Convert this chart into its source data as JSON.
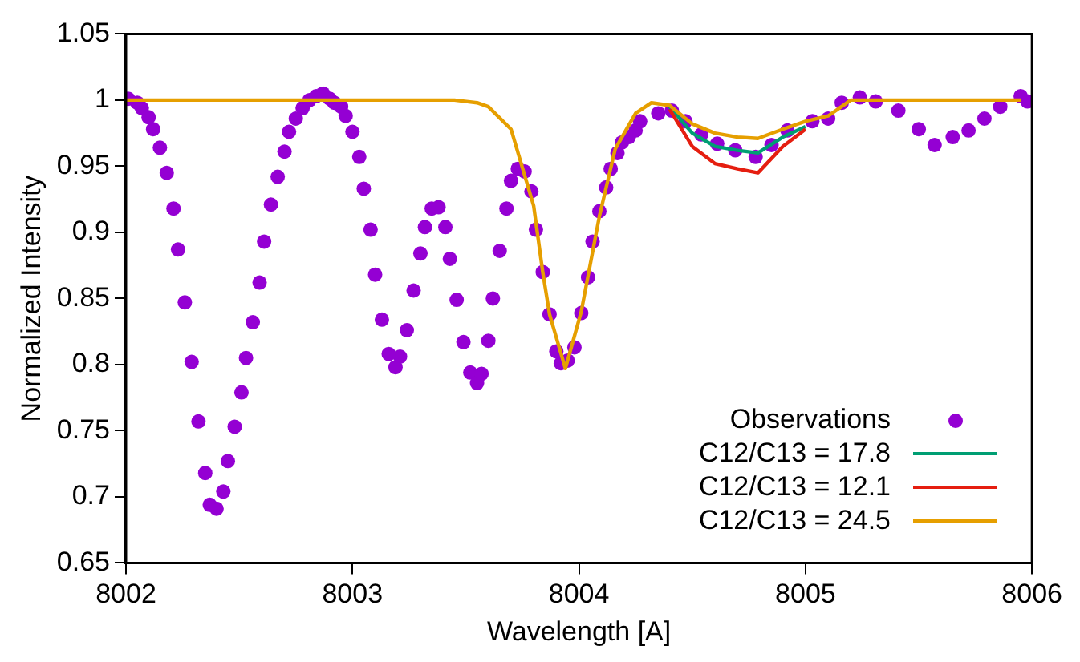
{
  "chart_data": {
    "type": "line",
    "xlabel": "Wavelength [A]",
    "ylabel": "Normalized Intensity",
    "xlim": [
      8002,
      8006
    ],
    "xticks": [
      8002,
      8003,
      8004,
      8005,
      8006
    ],
    "ylim": [
      0.65,
      1.05
    ],
    "yticks": [
      0.65,
      0.7,
      0.75,
      0.8,
      0.85,
      0.9,
      0.95,
      1,
      1.05
    ],
    "grid": false,
    "legend": "bottom right",
    "line_style": "solid",
    "series": [
      {
        "name": "Observations",
        "type": "scatter",
        "marker": "circle",
        "color": "#9400d3",
        "x": [
          8002.01,
          8002.05,
          8002.07,
          8002.1,
          8002.12,
          8002.15,
          8002.18,
          8002.21,
          8002.23,
          8002.26,
          8002.29,
          8002.32,
          8002.35,
          8002.37,
          8002.4,
          8002.43,
          8002.45,
          8002.48,
          8002.51,
          8002.53,
          8002.56,
          8002.59,
          8002.61,
          8002.64,
          8002.67,
          8002.7,
          8002.72,
          8002.75,
          8002.78,
          8002.81,
          8002.84,
          8002.87,
          8002.9,
          8002.92,
          8002.95,
          8002.97,
          8003.0,
          8003.03,
          8003.05,
          8003.08,
          8003.1,
          8003.13,
          8003.16,
          8003.19,
          8003.21,
          8003.24,
          8003.27,
          8003.3,
          8003.32,
          8003.35,
          8003.38,
          8003.41,
          8003.43,
          8003.46,
          8003.49,
          8003.52,
          8003.55,
          8003.57,
          8003.6,
          8003.62,
          8003.65,
          8003.68,
          8003.7,
          8003.73,
          8003.76,
          8003.79,
          8003.81,
          8003.84,
          8003.87,
          8003.9,
          8003.92,
          8003.95,
          8003.98,
          8004.01,
          8004.04,
          8004.06,
          8004.09,
          8004.12,
          8004.14,
          8004.17,
          8004.19,
          8004.22,
          8004.25,
          8004.27,
          8004.35,
          8004.41,
          8004.47,
          8004.54,
          8004.61,
          8004.69,
          8004.78,
          8004.85,
          8004.92,
          8005.03,
          8005.1,
          8005.16,
          8005.24,
          8005.31,
          8005.41,
          8005.5,
          8005.57,
          8005.65,
          8005.72,
          8005.79,
          8005.86,
          8005.95,
          8005.98
        ],
        "values": [
          1.001,
          0.998,
          0.994,
          0.987,
          0.978,
          0.964,
          0.945,
          0.918,
          0.887,
          0.847,
          0.802,
          0.757,
          0.718,
          0.694,
          0.691,
          0.704,
          0.727,
          0.753,
          0.779,
          0.805,
          0.832,
          0.862,
          0.893,
          0.921,
          0.942,
          0.961,
          0.976,
          0.986,
          0.994,
          1.0,
          1.003,
          1.005,
          1.001,
          0.998,
          0.995,
          0.988,
          0.976,
          0.957,
          0.933,
          0.902,
          0.868,
          0.834,
          0.808,
          0.798,
          0.806,
          0.826,
          0.856,
          0.884,
          0.904,
          0.918,
          0.919,
          0.904,
          0.88,
          0.849,
          0.817,
          0.794,
          0.786,
          0.793,
          0.818,
          0.85,
          0.886,
          0.918,
          0.939,
          0.948,
          0.946,
          0.931,
          0.902,
          0.87,
          0.838,
          0.81,
          0.801,
          0.803,
          0.813,
          0.839,
          0.866,
          0.893,
          0.916,
          0.934,
          0.948,
          0.96,
          0.968,
          0.972,
          0.977,
          0.984,
          0.99,
          0.992,
          0.984,
          0.974,
          0.967,
          0.962,
          0.957,
          0.966,
          0.977,
          0.984,
          0.986,
          0.998,
          1.002,
          0.999,
          0.992,
          0.978,
          0.966,
          0.972,
          0.977,
          0.986,
          0.995,
          1.003,
          0.999
        ]
      },
      {
        "name": "C12/C13 = 17.8",
        "color": "#009e73",
        "x": [
          8004.4,
          8004.5,
          8004.6,
          8004.7,
          8004.79,
          8004.9,
          8005.0
        ],
        "values": [
          0.995,
          0.975,
          0.965,
          0.962,
          0.96,
          0.972,
          0.98
        ]
      },
      {
        "name": "C12/C13 = 12.1",
        "color": "#e51e10",
        "x": [
          8004.4,
          8004.5,
          8004.6,
          8004.7,
          8004.79,
          8004.9,
          8005.0
        ],
        "values": [
          0.993,
          0.965,
          0.952,
          0.948,
          0.945,
          0.965,
          0.978
        ]
      },
      {
        "name": "C12/C13 = 24.5",
        "color": "#e69f00",
        "x": [
          8002,
          8003.45,
          8003.55,
          8003.6,
          8003.7,
          8003.8,
          8003.84,
          8003.87,
          8003.94,
          8004.01,
          8004.09,
          8004.16,
          8004.25,
          8004.32,
          8004.4,
          8004.5,
          8004.6,
          8004.7,
          8004.79,
          8004.9,
          8005.0,
          8005.1,
          8005.2,
          8005.95
        ],
        "values": [
          1,
          1,
          0.998,
          0.995,
          0.978,
          0.92,
          0.87,
          0.838,
          0.797,
          0.84,
          0.912,
          0.963,
          0.99,
          0.998,
          0.996,
          0.982,
          0.975,
          0.972,
          0.971,
          0.978,
          0.984,
          0.988,
          1,
          1
        ]
      }
    ]
  }
}
